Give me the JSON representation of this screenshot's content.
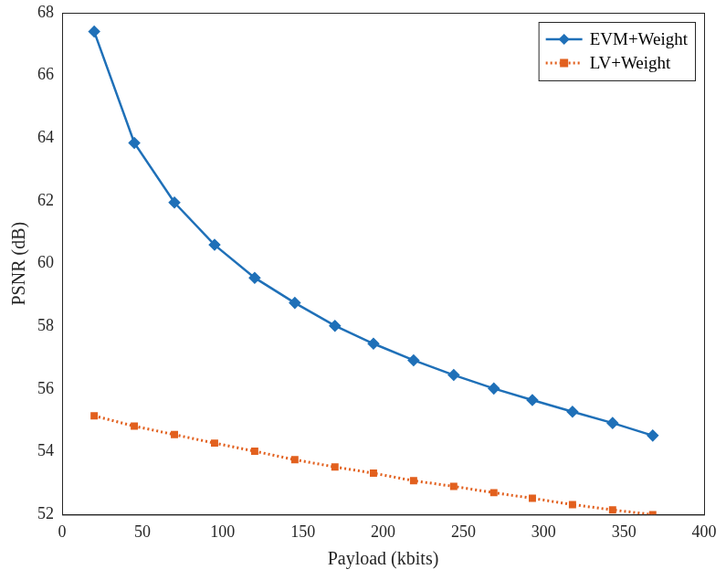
{
  "chart_data": {
    "type": "line",
    "x_label": "Payload (kbits)",
    "y_label": "PSNR (dB)",
    "xlim": [
      0,
      400
    ],
    "xticks": [
      0,
      50,
      100,
      150,
      200,
      250,
      300,
      350,
      400
    ],
    "ylim": [
      52,
      68
    ],
    "yticks": [
      52,
      54,
      56,
      58,
      60,
      62,
      64,
      66,
      68
    ],
    "grid": false,
    "legend": "upper right",
    "x": [
      20,
      45,
      70,
      95,
      120,
      145,
      170,
      194,
      219,
      244,
      269,
      293,
      318,
      343,
      368
    ],
    "series": [
      {
        "name": "EVM+Weight",
        "color": "#1f70b8",
        "marker": "diamond",
        "line_style": "solid",
        "values": [
          67.4,
          63.85,
          61.95,
          60.6,
          59.55,
          58.75,
          58.02,
          57.45,
          56.92,
          56.45,
          56.02,
          55.65,
          55.28,
          54.92,
          54.52
        ]
      },
      {
        "name": "LV+Weight",
        "color": "#e2601e",
        "marker": "square",
        "line_style": "dotted",
        "values": [
          55.15,
          54.82,
          54.55,
          54.28,
          54.02,
          53.75,
          53.52,
          53.32,
          53.08,
          52.9,
          52.7,
          52.52,
          52.32,
          52.15,
          52.0
        ]
      }
    ]
  }
}
